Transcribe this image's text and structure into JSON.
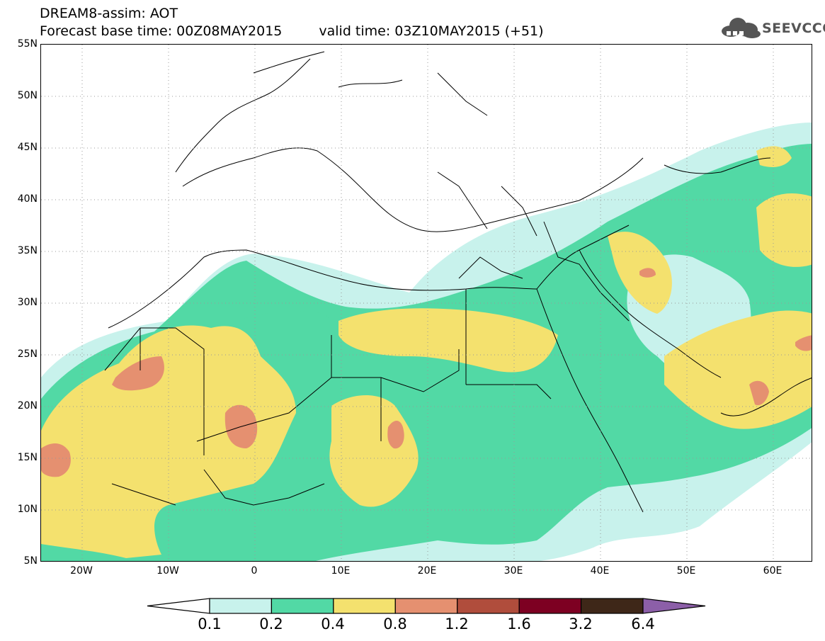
{
  "header": {
    "line1": "DREAM8-assim: AOT",
    "base_label": "Forecast base time: 00Z08MAY2015",
    "valid_label": "valid time: 03Z10MAY2015 (+51)"
  },
  "logo": {
    "text": "SEEVCCC",
    "icon": "cloud-icon"
  },
  "map": {
    "lat_labels": [
      "55N",
      "50N",
      "45N",
      "40N",
      "35N",
      "30N",
      "25N",
      "20N",
      "15N",
      "10N",
      "5N"
    ],
    "lon_labels": [
      "20W",
      "10W",
      "0",
      "10E",
      "20E",
      "30E",
      "40E",
      "50E",
      "60E"
    ],
    "grid": "dotted",
    "variable": "AOT"
  },
  "colorbar": {
    "labels": [
      "0.1",
      "0.2",
      "0.4",
      "0.8",
      "1.2",
      "1.6",
      "3.2",
      "6.4"
    ],
    "colors": [
      "#ffffff",
      "#c8f2ec",
      "#52d9a5",
      "#f4e16e",
      "#e59070",
      "#b04d3c",
      "#7d0022",
      "#3e2718",
      "#8c5fa8"
    ]
  },
  "field_colors": {
    "c1": "#c8f2ec",
    "c2": "#52d9a5",
    "c3": "#f4e16e",
    "c4": "#e59070"
  }
}
